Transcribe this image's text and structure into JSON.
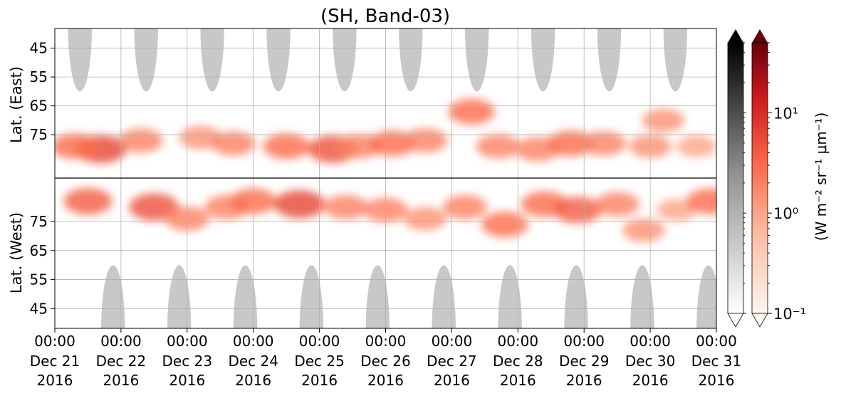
{
  "chart_data": {
    "type": "heatmap",
    "title": "(SH, Band-03)",
    "ylabel_top": "Lat. (East)",
    "ylabel_bottom": "Lat. (West)",
    "colorbar_label": "(W m⁻² sr⁻¹ μm⁻¹)",
    "colorbar_scale": "log",
    "colorbar_range": [
      0.1,
      50
    ],
    "colorbar_ticks": [
      {
        "value": 0.1,
        "label": "10⁻¹"
      },
      {
        "value": 1,
        "label": "10⁰"
      },
      {
        "value": 10,
        "label": "10¹"
      }
    ],
    "colormaps": [
      "Greys",
      "Reds"
    ],
    "x_range": [
      "2016-12-21T00:00",
      "2016-12-31T00:00"
    ],
    "x_ticks": [
      {
        "day": 0,
        "time": "00:00",
        "date": "Dec 21",
        "year": "2016"
      },
      {
        "day": 1,
        "time": "00:00",
        "date": "Dec 22",
        "year": "2016"
      },
      {
        "day": 2,
        "time": "00:00",
        "date": "Dec 23",
        "year": "2016"
      },
      {
        "day": 3,
        "time": "00:00",
        "date": "Dec 24",
        "year": "2016"
      },
      {
        "day": 4,
        "time": "00:00",
        "date": "Dec 25",
        "year": "2016"
      },
      {
        "day": 5,
        "time": "00:00",
        "date": "Dec 26",
        "year": "2016"
      },
      {
        "day": 6,
        "time": "00:00",
        "date": "Dec 27",
        "year": "2016"
      },
      {
        "day": 7,
        "time": "00:00",
        "date": "Dec 28",
        "year": "2016"
      },
      {
        "day": 8,
        "time": "00:00",
        "date": "Dec 29",
        "year": "2016"
      },
      {
        "day": 9,
        "time": "00:00",
        "date": "Dec 30",
        "year": "2016"
      },
      {
        "day": 10,
        "time": "00:00",
        "date": "Dec 31",
        "year": "2016"
      }
    ],
    "y_ticks_top": [
      "45",
      "55",
      "65",
      "75"
    ],
    "y_ticks_bottom": [
      "75",
      "65",
      "55",
      "45"
    ],
    "grid": true,
    "no_data_regions": [
      {
        "half": "top",
        "center_day": 0.38,
        "half_width_day": 0.18,
        "from_lat": 38,
        "to_lat": 60
      },
      {
        "half": "top",
        "center_day": 1.38,
        "half_width_day": 0.18,
        "from_lat": 38,
        "to_lat": 60
      },
      {
        "half": "top",
        "center_day": 2.38,
        "half_width_day": 0.18,
        "from_lat": 38,
        "to_lat": 60
      },
      {
        "half": "top",
        "center_day": 3.38,
        "half_width_day": 0.18,
        "from_lat": 38,
        "to_lat": 60
      },
      {
        "half": "top",
        "center_day": 4.38,
        "half_width_day": 0.18,
        "from_lat": 38,
        "to_lat": 60
      },
      {
        "half": "top",
        "center_day": 5.38,
        "half_width_day": 0.18,
        "from_lat": 38,
        "to_lat": 60
      },
      {
        "half": "top",
        "center_day": 6.38,
        "half_width_day": 0.18,
        "from_lat": 38,
        "to_lat": 60
      },
      {
        "half": "top",
        "center_day": 7.38,
        "half_width_day": 0.18,
        "from_lat": 38,
        "to_lat": 60
      },
      {
        "half": "top",
        "center_day": 8.38,
        "half_width_day": 0.18,
        "from_lat": 38,
        "to_lat": 60
      },
      {
        "half": "top",
        "center_day": 9.38,
        "half_width_day": 0.18,
        "from_lat": 38,
        "to_lat": 60
      },
      {
        "half": "bottom",
        "center_day": 0.88,
        "half_width_day": 0.18,
        "from_lat": 38,
        "to_lat": 60
      },
      {
        "half": "bottom",
        "center_day": 1.88,
        "half_width_day": 0.18,
        "from_lat": 38,
        "to_lat": 60
      },
      {
        "half": "bottom",
        "center_day": 2.88,
        "half_width_day": 0.18,
        "from_lat": 38,
        "to_lat": 60
      },
      {
        "half": "bottom",
        "center_day": 3.88,
        "half_width_day": 0.18,
        "from_lat": 38,
        "to_lat": 60
      },
      {
        "half": "bottom",
        "center_day": 4.88,
        "half_width_day": 0.18,
        "from_lat": 38,
        "to_lat": 60
      },
      {
        "half": "bottom",
        "center_day": 5.88,
        "half_width_day": 0.18,
        "from_lat": 38,
        "to_lat": 60
      },
      {
        "half": "bottom",
        "center_day": 6.88,
        "half_width_day": 0.18,
        "from_lat": 38,
        "to_lat": 60
      },
      {
        "half": "bottom",
        "center_day": 7.88,
        "half_width_day": 0.18,
        "from_lat": 38,
        "to_lat": 60
      },
      {
        "half": "bottom",
        "center_day": 8.88,
        "half_width_day": 0.18,
        "from_lat": 38,
        "to_lat": 60
      },
      {
        "half": "bottom",
        "center_day": 9.88,
        "half_width_day": 0.18,
        "from_lat": 38,
        "to_lat": 60
      }
    ],
    "emission_blobs": [
      {
        "half": "top",
        "day": 0.7,
        "lat": 80,
        "value": 6
      },
      {
        "half": "top",
        "day": 0.3,
        "lat": 79,
        "value": 3
      },
      {
        "half": "top",
        "day": 1.3,
        "lat": 77,
        "value": 2
      },
      {
        "half": "top",
        "day": 2.2,
        "lat": 76,
        "value": 1.5
      },
      {
        "half": "top",
        "day": 2.7,
        "lat": 78,
        "value": 2
      },
      {
        "half": "top",
        "day": 3.5,
        "lat": 79,
        "value": 3
      },
      {
        "half": "top",
        "day": 4.2,
        "lat": 80,
        "value": 5
      },
      {
        "half": "top",
        "day": 4.6,
        "lat": 79,
        "value": 2
      },
      {
        "half": "top",
        "day": 5.1,
        "lat": 78,
        "value": 3
      },
      {
        "half": "top",
        "day": 5.6,
        "lat": 77,
        "value": 2
      },
      {
        "half": "top",
        "day": 6.3,
        "lat": 67,
        "value": 3
      },
      {
        "half": "top",
        "day": 6.7,
        "lat": 79,
        "value": 2
      },
      {
        "half": "top",
        "day": 7.3,
        "lat": 80,
        "value": 2
      },
      {
        "half": "top",
        "day": 7.8,
        "lat": 78,
        "value": 3
      },
      {
        "half": "top",
        "day": 8.3,
        "lat": 78,
        "value": 2
      },
      {
        "half": "top",
        "day": 9.0,
        "lat": 79,
        "value": 1.5
      },
      {
        "half": "top",
        "day": 9.2,
        "lat": 70,
        "value": 1.5
      },
      {
        "half": "top",
        "day": 9.7,
        "lat": 79,
        "value": 1
      },
      {
        "half": "bottom",
        "day": 0.5,
        "lat": 82,
        "value": 4
      },
      {
        "half": "bottom",
        "day": 1.5,
        "lat": 80,
        "value": 5
      },
      {
        "half": "bottom",
        "day": 2.0,
        "lat": 76,
        "value": 2
      },
      {
        "half": "bottom",
        "day": 2.6,
        "lat": 80,
        "value": 2
      },
      {
        "half": "bottom",
        "day": 3.0,
        "lat": 82,
        "value": 3
      },
      {
        "half": "bottom",
        "day": 3.7,
        "lat": 81,
        "value": 6
      },
      {
        "half": "bottom",
        "day": 4.4,
        "lat": 80,
        "value": 2
      },
      {
        "half": "bottom",
        "day": 5.0,
        "lat": 79,
        "value": 2
      },
      {
        "half": "bottom",
        "day": 5.6,
        "lat": 76,
        "value": 1.5
      },
      {
        "half": "bottom",
        "day": 6.2,
        "lat": 80,
        "value": 2
      },
      {
        "half": "bottom",
        "day": 6.8,
        "lat": 74,
        "value": 3
      },
      {
        "half": "bottom",
        "day": 7.4,
        "lat": 81,
        "value": 3
      },
      {
        "half": "bottom",
        "day": 7.9,
        "lat": 79,
        "value": 4
      },
      {
        "half": "bottom",
        "day": 8.5,
        "lat": 81,
        "value": 2
      },
      {
        "half": "bottom",
        "day": 8.9,
        "lat": 72,
        "value": 1.5
      },
      {
        "half": "bottom",
        "day": 9.4,
        "lat": 79,
        "value": 1
      },
      {
        "half": "bottom",
        "day": 9.9,
        "lat": 82,
        "value": 3
      }
    ]
  }
}
